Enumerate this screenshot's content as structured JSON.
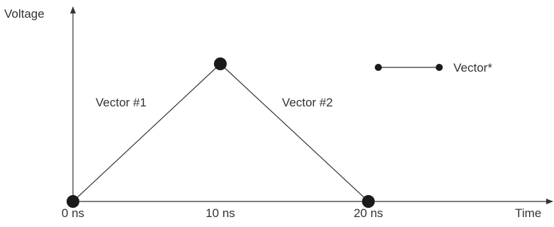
{
  "axes": {
    "y_label": "Voltage",
    "x_label": "Time"
  },
  "ticks": [
    "0 ns",
    "10 ns",
    "20 ns"
  ],
  "vectors": [
    {
      "label": "Vector #1",
      "from": "0 ns",
      "to": "10 ns"
    },
    {
      "label": "Vector #2",
      "from": "10 ns",
      "to": "20 ns"
    }
  ],
  "legend": {
    "label": "Vector*"
  }
}
